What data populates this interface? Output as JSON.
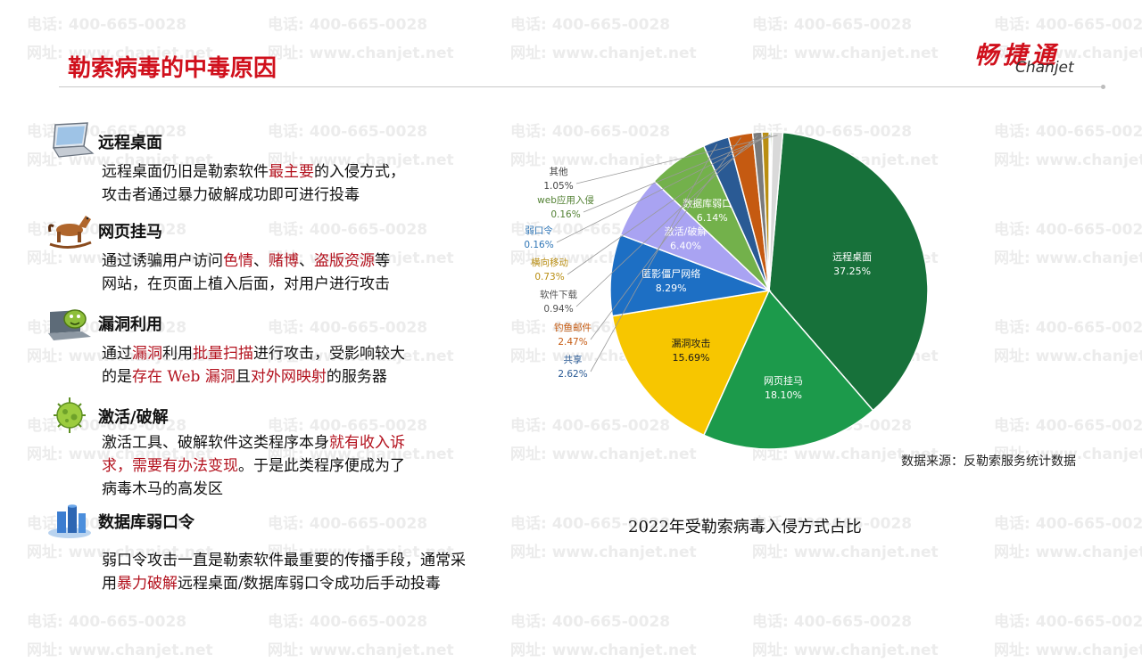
{
  "watermark": {
    "phone": "电话: 400-665-0028",
    "site": "网址: www.chanjet.net"
  },
  "page": {
    "title": "勒索病毒的中毒原因"
  },
  "logo": {
    "cn": "畅捷通",
    "en": "Chanjet"
  },
  "sections": [
    {
      "icon": "laptop-icon",
      "heading": "远程桌面",
      "lines": [
        [
          {
            "t": "远程桌面仍旧是勒索软件",
            "h": false
          },
          {
            "t": "最主要",
            "h": true
          },
          {
            "t": "的入侵方式，",
            "h": false
          }
        ],
        [
          {
            "t": "攻击者通过暴力破解成功即可进行投毒",
            "h": false
          }
        ]
      ]
    },
    {
      "icon": "rocking-horse-icon",
      "heading": "网页挂马",
      "lines": [
        [
          {
            "t": "通过诱骗用户访问",
            "h": false
          },
          {
            "t": "色情",
            "h": true
          },
          {
            "t": "、",
            "h": false
          },
          {
            "t": "赌博",
            "h": true
          },
          {
            "t": "、",
            "h": false
          },
          {
            "t": "盗版资源",
            "h": true
          },
          {
            "t": "等",
            "h": false
          }
        ],
        [
          {
            "t": "网站，在页面上植入后面，对用户进行攻击",
            "h": false
          }
        ]
      ]
    },
    {
      "icon": "bug-laptop-icon",
      "heading": "漏洞利用",
      "lines": [
        [
          {
            "t": "通过",
            "h": false
          },
          {
            "t": "漏洞",
            "h": true
          },
          {
            "t": "利用",
            "h": false
          },
          {
            "t": "批量扫描",
            "h": true
          },
          {
            "t": "进行攻击，受影响较大",
            "h": false
          }
        ],
        [
          {
            "t": "的是",
            "h": false
          },
          {
            "t": "存在 Web 漏洞",
            "h": true
          },
          {
            "t": "且",
            "h": false
          },
          {
            "t": "对外网映射",
            "h": true
          },
          {
            "t": "的服务器",
            "h": false
          }
        ]
      ]
    },
    {
      "icon": "virus-icon",
      "heading": "激活/破解",
      "lines": [
        [
          {
            "t": "激活工具、破解软件这类程序本身",
            "h": false
          },
          {
            "t": "就有收入诉",
            "h": true
          }
        ],
        [
          {
            "t": "求，需要有办法变现",
            "h": true
          },
          {
            "t": "。于是此类程序便成为了",
            "h": false
          }
        ],
        [
          {
            "t": "病毒木马的高发区",
            "h": false
          }
        ]
      ]
    },
    {
      "icon": "database-icon",
      "heading": "数据库弱口令",
      "lines": [
        [
          {
            "t": "弱口令攻击一直是勒索软件最重要的传播手段，通常采",
            "h": false
          }
        ],
        [
          {
            "t": "用",
            "h": false
          },
          {
            "t": "暴力破解",
            "h": true
          },
          {
            "t": "远程桌面/数据库弱口令成功后手动投毒",
            "h": false
          }
        ]
      ]
    }
  ],
  "chart_data": {
    "type": "pie",
    "title": "2022年受勒索病毒入侵方式占比",
    "source": "数据来源：反勒索服务统计数据",
    "slices": [
      {
        "label": "远程桌面",
        "value": 37.25,
        "pct": "37.25%",
        "color": "#17713a"
      },
      {
        "label": "网页挂马",
        "value": 18.1,
        "pct": "18.10%",
        "color": "#1c9a4b"
      },
      {
        "label": "漏洞攻击",
        "value": 15.69,
        "pct": "15.69%",
        "color": "#f7c600"
      },
      {
        "label": "匿影僵尸网络",
        "value": 8.29,
        "pct": "8.29%",
        "color": "#1d6fc4"
      },
      {
        "label": "激活/破解",
        "value": 6.4,
        "pct": "6.40%",
        "color": "#a9a3f2"
      },
      {
        "label": "数据库弱口令",
        "value": 6.14,
        "pct": "6.14%",
        "color": "#73b14b"
      },
      {
        "label": "共享",
        "value": 2.62,
        "pct": "2.62%",
        "color": "#2a5a94"
      },
      {
        "label": "钓鱼邮件",
        "value": 2.47,
        "pct": "2.47%",
        "color": "#c55a11"
      },
      {
        "label": "软件下载",
        "value": 0.94,
        "pct": "0.94%",
        "color": "#7b7b7b"
      },
      {
        "label": "横向移动",
        "value": 0.73,
        "pct": "0.73%",
        "color": "#b98e12"
      },
      {
        "label": "弱口令",
        "value": 0.16,
        "pct": "0.16%",
        "color": "#2e75b6"
      },
      {
        "label": "web应用入侵",
        "value": 0.16,
        "pct": "0.16%",
        "color": "#548235"
      },
      {
        "label": "其他",
        "value": 1.05,
        "pct": "1.05%",
        "color": "#d9d9d9"
      }
    ]
  }
}
